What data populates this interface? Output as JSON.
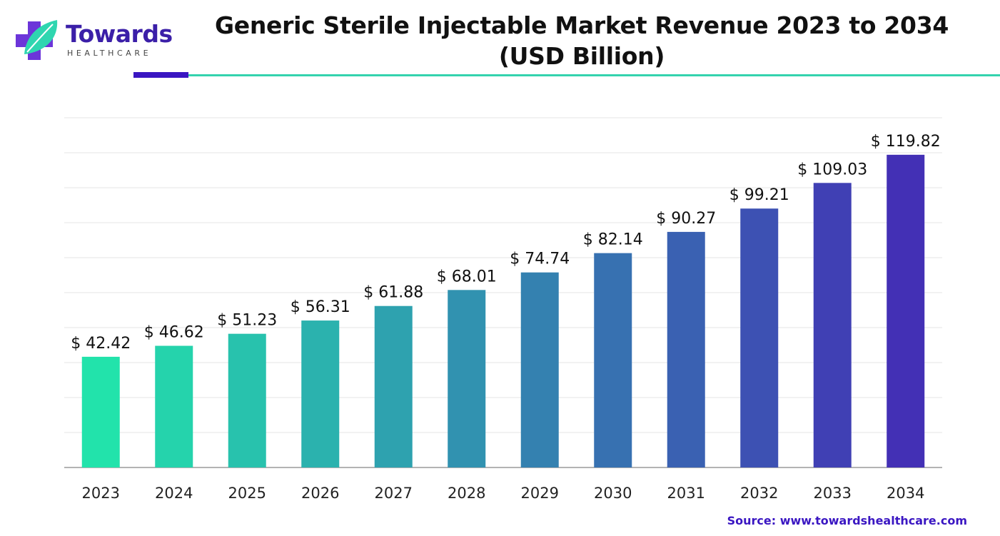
{
  "header": {
    "logo_name": "Towards",
    "logo_sub": "HEALTHCARE",
    "title_line1": "Generic Sterile Injectable Market Revenue 2023 to 2034",
    "title_line2": "(USD Billion)"
  },
  "source": "Source: www.towardshealthcare.com",
  "colors": {
    "gradient_start": "#22e3ab",
    "gradient_end": "#4330b5",
    "accent": "#3a16c2",
    "rule": "#34d3ae"
  },
  "chart_data": {
    "type": "bar",
    "title": "Generic Sterile Injectable Market Revenue 2023 to 2034 (USD Billion)",
    "categories": [
      "2023",
      "2024",
      "2025",
      "2026",
      "2027",
      "2028",
      "2029",
      "2030",
      "2031",
      "2032",
      "2033",
      "2034"
    ],
    "values": [
      42.42,
      46.62,
      51.23,
      56.31,
      61.88,
      68.01,
      74.74,
      82.14,
      90.27,
      99.21,
      109.03,
      119.82
    ],
    "value_labels": [
      "$ 42.42",
      "$ 46.62",
      "$ 51.23",
      "$ 56.31",
      "$ 61.88",
      "$ 68.01",
      "$ 74.74",
      "$ 82.14",
      "$ 90.27",
      "$ 99.21",
      "$ 109.03",
      "$ 119.82"
    ],
    "xlabel": "",
    "ylabel": "",
    "ylim": [
      0,
      134
    ],
    "grid": true,
    "legend": "none"
  }
}
